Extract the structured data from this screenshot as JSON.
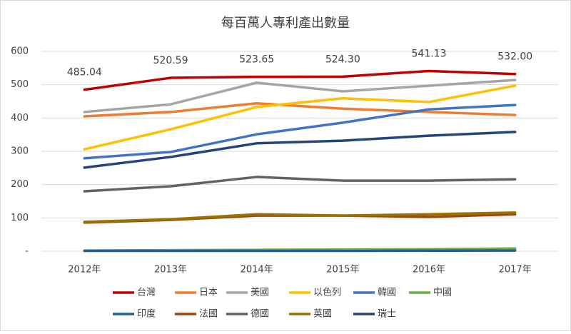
{
  "chart_data": {
    "type": "line",
    "title": "每百萬人專利產出數量",
    "categories": [
      "2012年",
      "2013年",
      "2014年",
      "2015年",
      "2016年",
      "2017年"
    ],
    "ylim": [
      0,
      600
    ],
    "yticks": [
      {
        "value": 0,
        "label": "-"
      },
      100,
      200,
      300,
      400,
      500,
      600
    ],
    "grid": true,
    "legend": "bottom",
    "series": [
      {
        "name": "台灣",
        "color": "#c00000",
        "values": [
          485.04,
          520.59,
          523.65,
          524.3,
          541.13,
          532.0
        ],
        "value_labels": [
          "485.04",
          "520.59",
          "523.65",
          "524.30",
          "541.13",
          "532.00"
        ]
      },
      {
        "name": "日本",
        "color": "#ed7d31",
        "values": [
          405,
          418,
          444,
          428,
          418,
          409
        ]
      },
      {
        "name": "美國",
        "color": "#a5a5a5",
        "values": [
          418,
          441,
          506,
          480,
          497,
          514
        ]
      },
      {
        "name": "以色列",
        "color": "#ffc000",
        "values": [
          306,
          366,
          433,
          459,
          448,
          497
        ]
      },
      {
        "name": "韓國",
        "color": "#4472c4",
        "values": [
          279,
          298,
          351,
          386,
          426,
          439
        ]
      },
      {
        "name": "中國",
        "color": "#70ad47",
        "values": [
          2,
          3,
          4,
          5,
          6,
          8
        ]
      },
      {
        "name": "印度",
        "color": "#255e91",
        "values": [
          1,
          1,
          1,
          1,
          1.5,
          2
        ]
      },
      {
        "name": "法國",
        "color": "#9e480e",
        "values": [
          86,
          94,
          107,
          107,
          103,
          111
        ]
      },
      {
        "name": "德國",
        "color": "#636363",
        "values": [
          180,
          195,
          223,
          212,
          212,
          216
        ]
      },
      {
        "name": "英國",
        "color": "#997300",
        "values": [
          88,
          96,
          111,
          107,
          111,
          116
        ]
      },
      {
        "name": "瑞士",
        "color": "#264478",
        "values": [
          251,
          283,
          324,
          332,
          347,
          358
        ]
      }
    ]
  }
}
